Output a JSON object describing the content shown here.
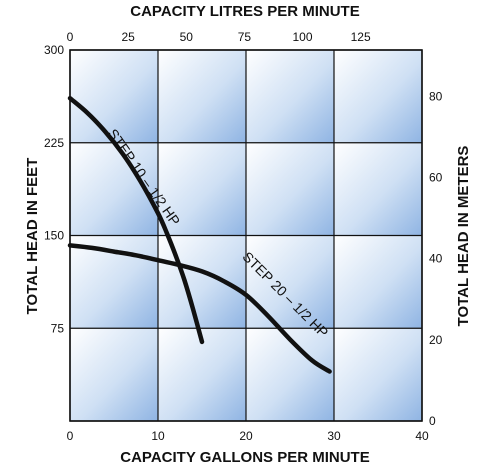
{
  "chart_data": {
    "type": "line",
    "title": "",
    "xlabel": "CAPACITY GALLONS PER MINUTE",
    "ylabel": "TOTAL HEAD IN FEET",
    "x2label": "CAPACITY LITRES PER MINUTE",
    "y2label": "TOTAL HEAD IN METERS",
    "xlim": [
      0,
      40
    ],
    "ylim": [
      0,
      300
    ],
    "x2lim": [
      0,
      151.4
    ],
    "y2lim": [
      0,
      91.44
    ],
    "x_ticks": [
      "0",
      "10",
      "20",
      "30",
      "40"
    ],
    "x_tick_values": [
      0,
      10,
      20,
      30,
      40
    ],
    "y_ticks": [
      "75",
      "150",
      "225",
      "300"
    ],
    "y_tick_values": [
      75,
      150,
      225,
      300
    ],
    "x2_ticks": [
      "0",
      "25",
      "50",
      "75",
      "100",
      "125"
    ],
    "x2_tick_values": [
      0,
      25,
      50,
      75,
      100,
      125
    ],
    "y2_ticks": [
      "0",
      "20",
      "40",
      "60",
      "80"
    ],
    "y2_tick_values": [
      0,
      20,
      40,
      60,
      80
    ],
    "grid": true,
    "legend": "none",
    "line_color": "#111111",
    "series": [
      {
        "label": "STEP 10 – 1/2 HP",
        "x": [
          0,
          2,
          4,
          6,
          8,
          10,
          11,
          12,
          13,
          14,
          15
        ],
        "y": [
          261,
          249,
          234,
          216,
          194,
          168,
          152,
          134,
          114,
          90,
          64
        ]
      },
      {
        "label": "STEP 20 – 1/2 HP",
        "x": [
          0,
          2.5,
          5,
          7.5,
          10,
          12.5,
          15,
          17.5,
          20,
          22.5,
          25,
          27.5,
          29.5
        ],
        "y": [
          142,
          140,
          137,
          134,
          130,
          126,
          121,
          113,
          102,
          85,
          66,
          49,
          40
        ]
      }
    ]
  }
}
